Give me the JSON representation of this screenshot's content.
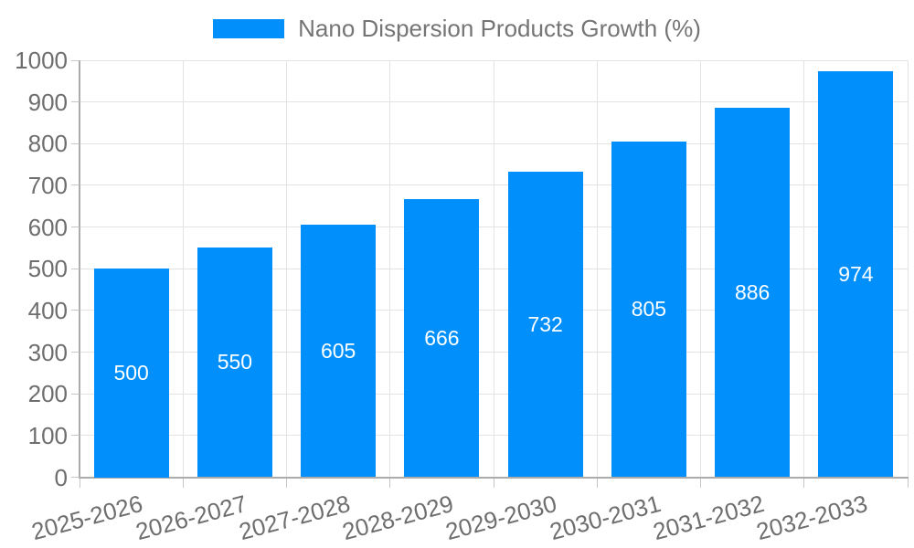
{
  "chart_data": {
    "type": "bar",
    "title": "Nano Dispersion Products Growth (%)",
    "categories": [
      "2025-2026",
      "2026-2027",
      "2027-2028",
      "2028-2029",
      "2029-2030",
      "2030-2031",
      "2031-2032",
      "2032-2033"
    ],
    "values": [
      500,
      550,
      605,
      666,
      732,
      805,
      886,
      974
    ],
    "xlabel": "",
    "ylabel": "",
    "ylim": [
      0,
      1000
    ],
    "y_ticks": [
      0,
      100,
      200,
      300,
      400,
      500,
      600,
      700,
      800,
      900,
      1000
    ],
    "grid": true,
    "legend_position": "top",
    "bar_color": "#008FFB",
    "value_label_color": "#ffffff",
    "axis_label_color": "#6e6e6e",
    "title_color": "#757575"
  }
}
